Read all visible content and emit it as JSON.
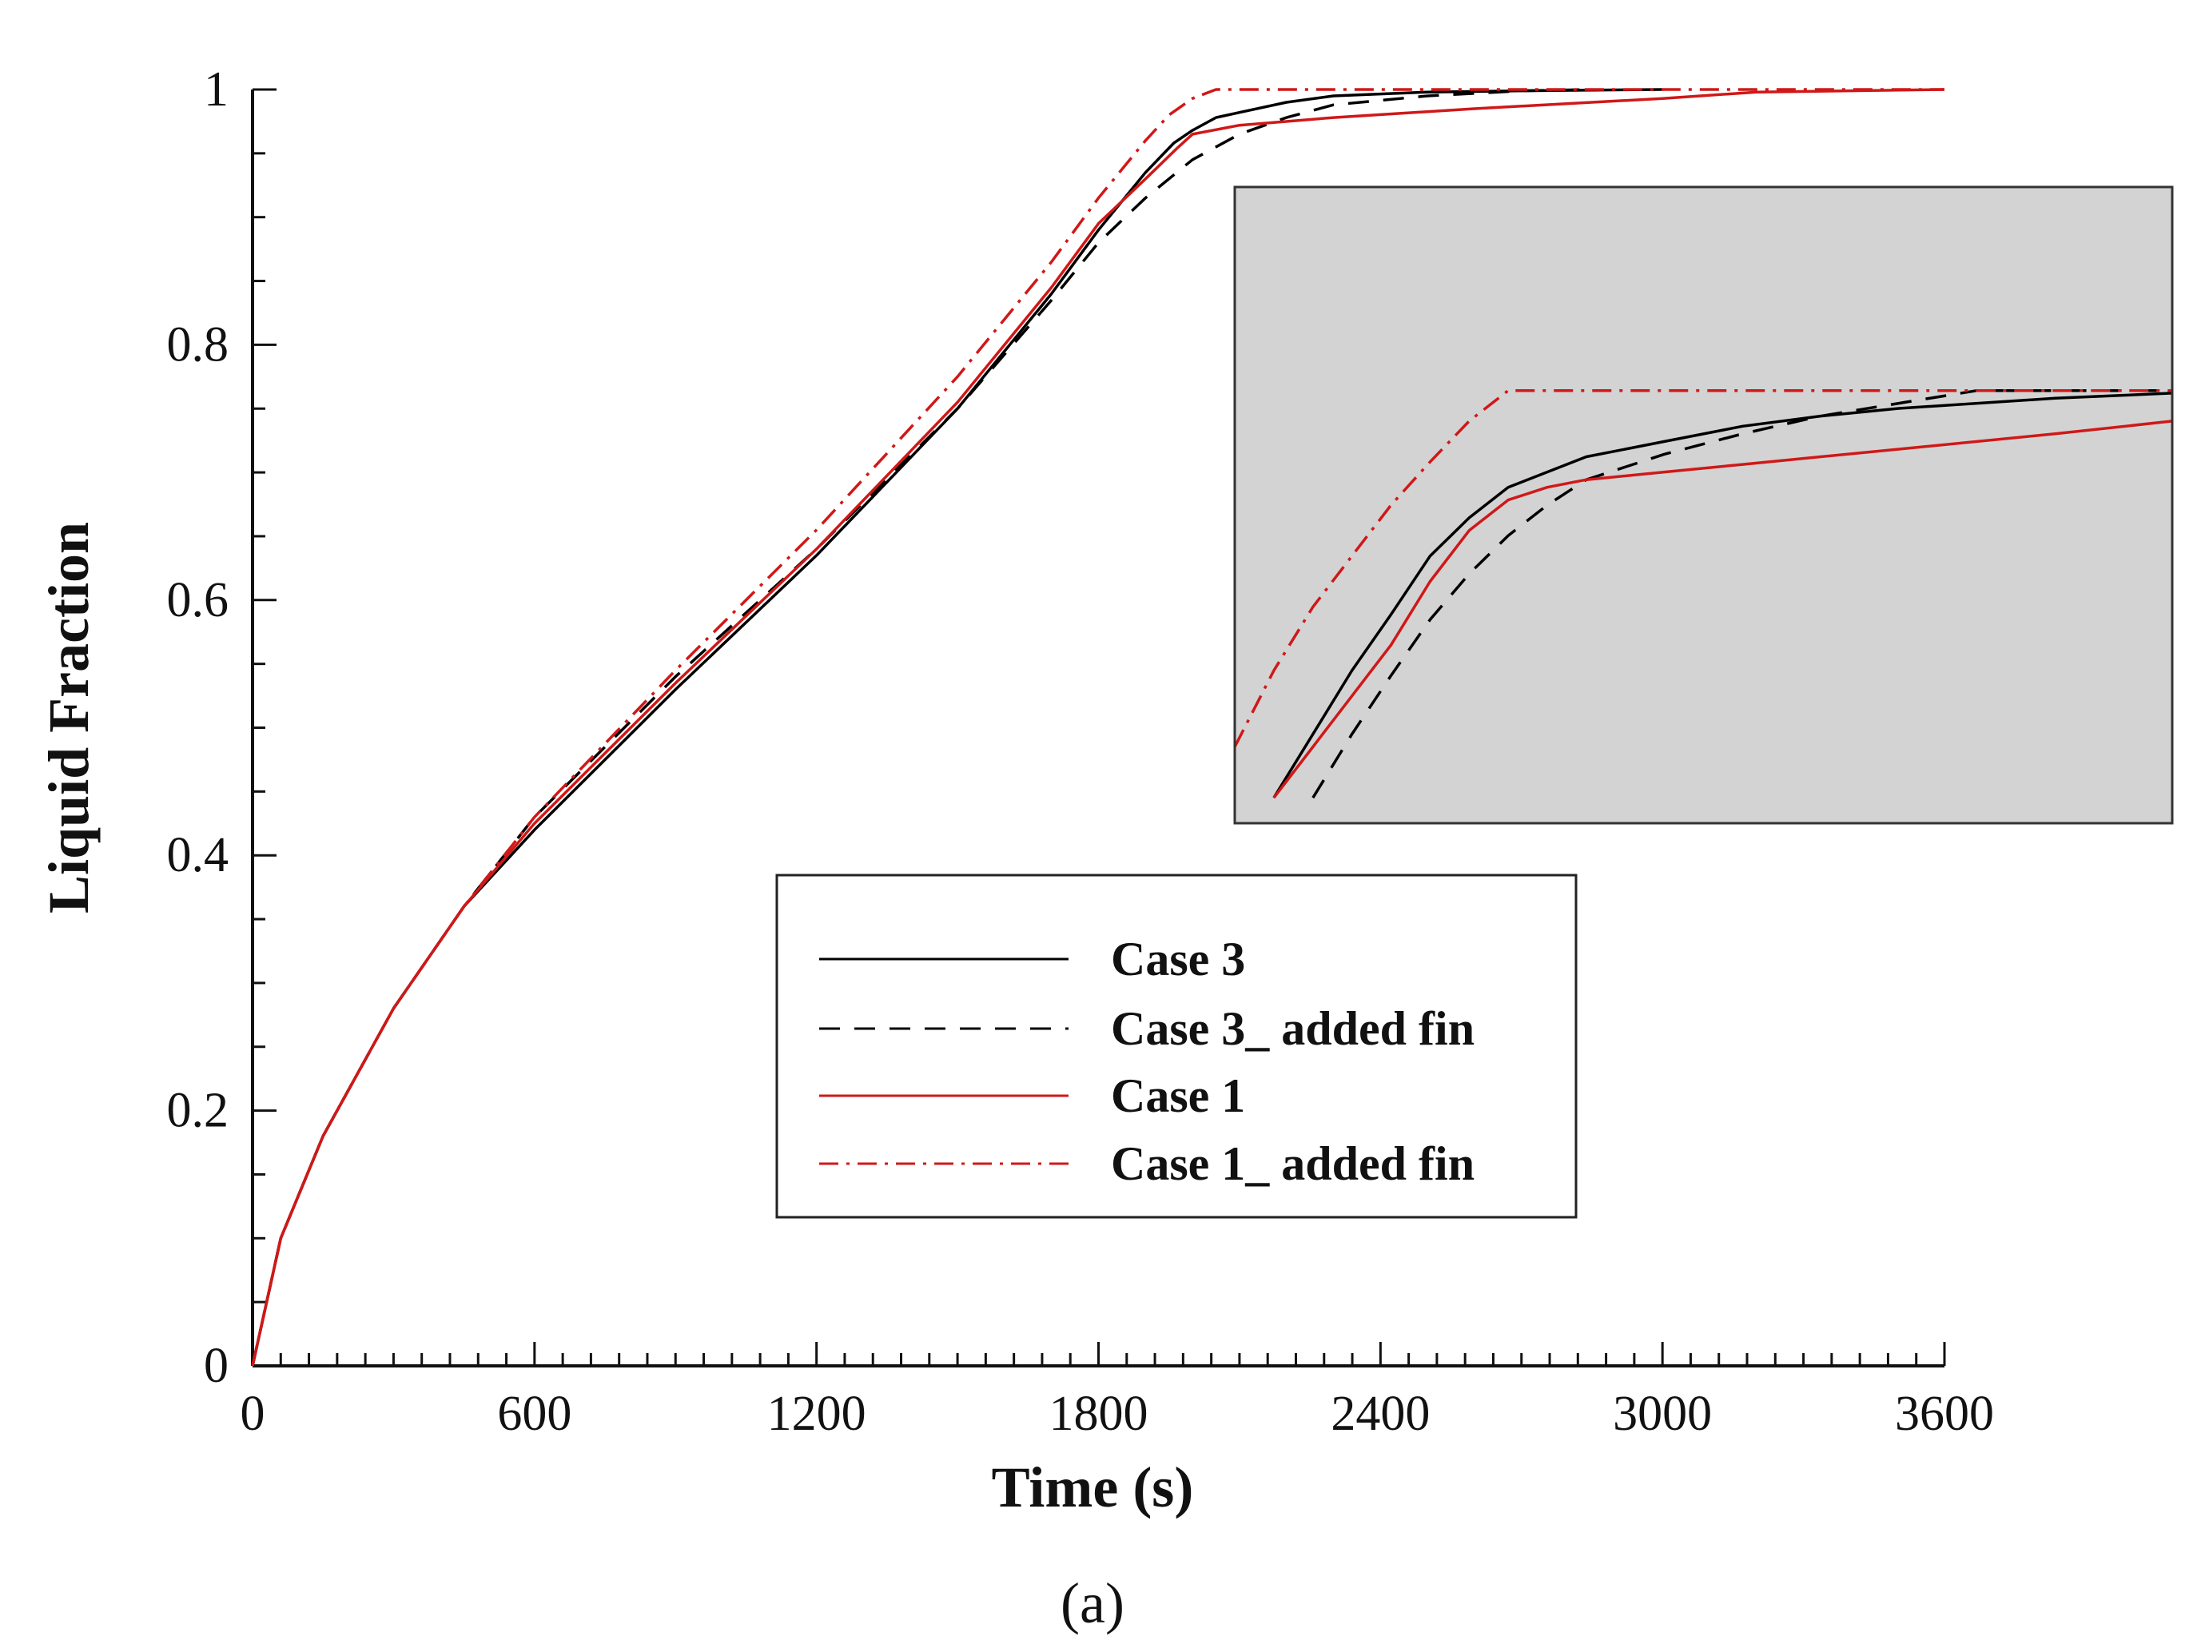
{
  "chart_data": {
    "type": "line",
    "xlabel": "Time (s)",
    "ylabel": "Liquid Fraction",
    "xlim": [
      0,
      3600
    ],
    "ylim": [
      0,
      1
    ],
    "x_ticks": [
      0,
      600,
      1200,
      1800,
      2400,
      3000,
      3600
    ],
    "x_tick_labels": [
      "0",
      "600",
      "1200",
      "1800",
      "2400",
      "3000",
      "3600"
    ],
    "y_ticks": [
      0,
      0.2,
      0.4,
      0.6,
      0.8,
      1
    ],
    "y_tick_labels": [
      "0",
      "0.2",
      "0.4",
      "0.6",
      "0.8",
      "1"
    ],
    "grid": false,
    "legend_position": "center-bottom",
    "caption": "(a)",
    "series": [
      {
        "name": "Case 3",
        "color": "#000000",
        "style": "solid",
        "x": [
          0,
          60,
          150,
          300,
          450,
          600,
          900,
          1200,
          1500,
          1700,
          1800,
          1900,
          1960,
          2000,
          2050,
          2100,
          2200,
          2300,
          2500,
          2700,
          3000
        ],
        "y": [
          0,
          0.1,
          0.18,
          0.28,
          0.36,
          0.42,
          0.53,
          0.635,
          0.75,
          0.84,
          0.89,
          0.935,
          0.958,
          0.968,
          0.978,
          0.982,
          0.99,
          0.995,
          0.998,
          0.999,
          1.0
        ]
      },
      {
        "name": "Case 3_ added fin",
        "color": "#000000",
        "style": "dashed",
        "x": [
          0,
          60,
          150,
          300,
          450,
          600,
          900,
          1200,
          1500,
          1700,
          1800,
          1900,
          2000,
          2100,
          2200,
          2300,
          2500,
          2700,
          2850
        ],
        "y": [
          0,
          0.1,
          0.18,
          0.28,
          0.36,
          0.43,
          0.54,
          0.64,
          0.75,
          0.835,
          0.88,
          0.915,
          0.945,
          0.965,
          0.978,
          0.988,
          0.995,
          0.999,
          1.0
        ]
      },
      {
        "name": "Case 1",
        "color": "#d01818",
        "style": "solid",
        "x": [
          0,
          60,
          150,
          300,
          450,
          600,
          900,
          1200,
          1500,
          1700,
          1800,
          1900,
          1970,
          2000,
          2100,
          2300,
          2600,
          3000,
          3200,
          3600
        ],
        "y": [
          0,
          0.1,
          0.18,
          0.28,
          0.36,
          0.425,
          0.535,
          0.64,
          0.755,
          0.845,
          0.895,
          0.93,
          0.955,
          0.965,
          0.972,
          0.978,
          0.985,
          0.993,
          0.998,
          1.0
        ]
      },
      {
        "name": "Case 1_ added fin",
        "color": "#d01818",
        "style": "dashdot",
        "x": [
          0,
          60,
          150,
          300,
          450,
          600,
          900,
          1200,
          1500,
          1700,
          1800,
          1900,
          1950,
          2000,
          2050,
          2400,
          2800,
          3600
        ],
        "y": [
          0,
          0.1,
          0.18,
          0.28,
          0.36,
          0.43,
          0.545,
          0.655,
          0.775,
          0.865,
          0.915,
          0.96,
          0.98,
          0.993,
          1.0,
          1.0,
          1.0,
          1.0
        ]
      }
    ],
    "inset": {
      "background": "#d3d3d3",
      "series": [
        {
          "name": "Case 3",
          "x": [
            1700,
            1750,
            1800,
            1850,
            1900,
            1950,
            2000,
            2050,
            2100,
            2200,
            2300,
            2400,
            2500,
            2700,
            2850
          ],
          "y": [
            0.84,
            0.865,
            0.89,
            0.912,
            0.935,
            0.95,
            0.962,
            0.968,
            0.974,
            0.98,
            0.986,
            0.99,
            0.993,
            0.997,
            0.999
          ]
        },
        {
          "name": "Case 3_ added fin",
          "x": [
            1750,
            1800,
            1850,
            1900,
            1950,
            2000,
            2050,
            2100,
            2200,
            2300,
            2400,
            2500,
            2600,
            2700,
            2850
          ],
          "y": [
            0.84,
            0.865,
            0.888,
            0.91,
            0.928,
            0.943,
            0.955,
            0.965,
            0.975,
            0.983,
            0.99,
            0.995,
            1.0,
            1.0,
            1.0
          ]
        },
        {
          "name": "Case 1",
          "x": [
            1700,
            1750,
            1800,
            1850,
            1900,
            1950,
            2000,
            2050,
            2100,
            2200,
            2300,
            2400,
            2500,
            2700,
            2850
          ],
          "y": [
            0.84,
            0.86,
            0.88,
            0.9,
            0.925,
            0.945,
            0.957,
            0.962,
            0.965,
            0.968,
            0.971,
            0.974,
            0.977,
            0.983,
            0.988
          ]
        },
        {
          "name": "Case 1_ added fin",
          "x": [
            1650,
            1700,
            1750,
            1800,
            1850,
            1900,
            1950,
            2000,
            2050,
            2200,
            2400,
            2600,
            2850
          ],
          "y": [
            0.86,
            0.89,
            0.915,
            0.935,
            0.955,
            0.972,
            0.988,
            1.0,
            1.0,
            1.0,
            1.0,
            1.0,
            1.0
          ]
        }
      ],
      "xlim": [
        1650,
        2850
      ],
      "ylim": [
        0.83,
        1.08
      ]
    }
  }
}
